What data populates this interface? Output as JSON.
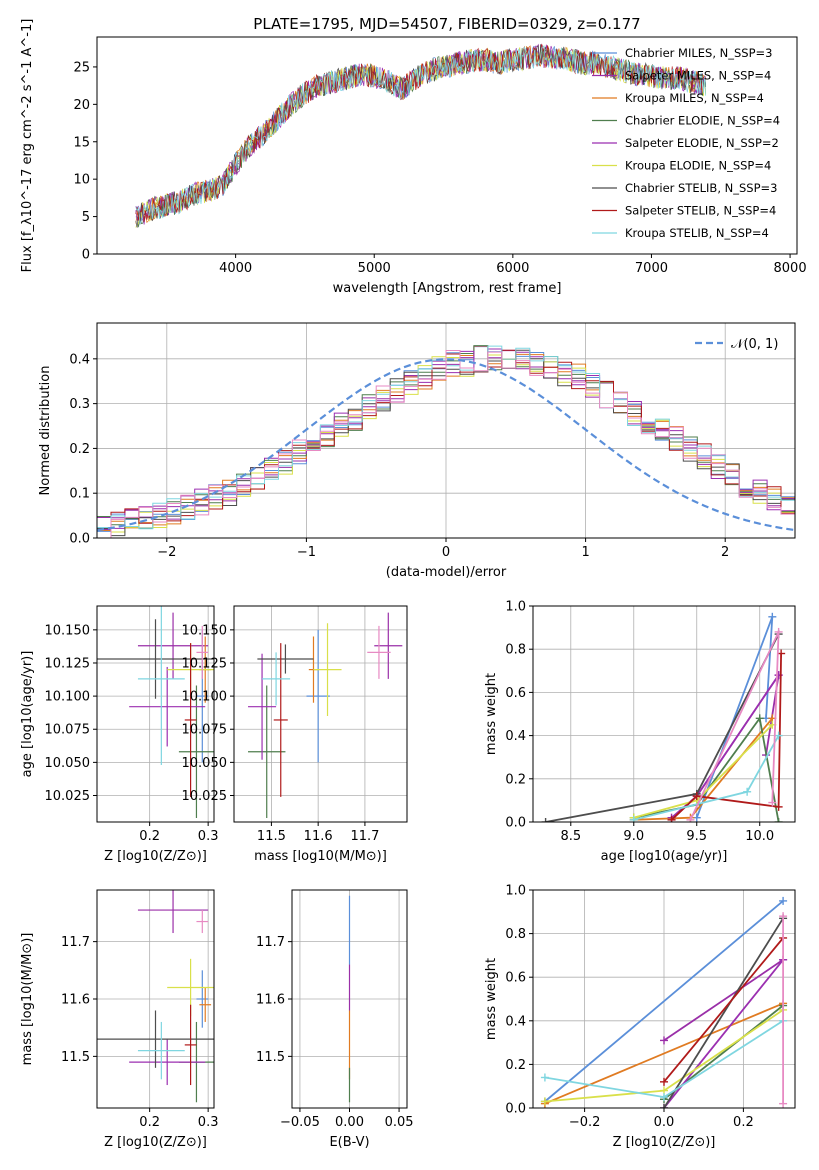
{
  "palette": [
    "#5b8fd9",
    "#9a2fa8",
    "#e07b22",
    "#4f7e4e",
    "#9b2fb0",
    "#d9e04a",
    "#4d4d4d",
    "#b01a1a",
    "#7fd6e0",
    "#e78ac3"
  ],
  "chart_data": [
    {
      "id": "spectrum",
      "type": "line",
      "title": "PLATE=1795, MJD=54507, FIBERID=0329, z=0.177",
      "xlabel": "wavelength [Angstrom, rest frame]",
      "ylabel": "Flux [f_λ10^-17 erg cm^-2 s^-1 A^-1]",
      "xlim": [
        3000,
        8050
      ],
      "ylim": [
        0,
        29
      ],
      "xticks": [
        4000,
        5000,
        6000,
        7000,
        8000
      ],
      "yticks": [
        0,
        5,
        10,
        15,
        20,
        25
      ],
      "grid": false,
      "legend_position": "upper-right",
      "x": [
        3280,
        3400,
        3500,
        3600,
        3700,
        3800,
        3900,
        4000,
        4100,
        4200,
        4300,
        4400,
        4500,
        4600,
        4700,
        4800,
        4900,
        5000,
        5100,
        5200,
        5300,
        5400,
        5500,
        5600,
        5700,
        5800,
        5900,
        6000,
        6100,
        6200,
        6300,
        6400,
        6500,
        6600,
        6700,
        6800,
        6900,
        7000,
        7100,
        7200,
        7300,
        7400
      ],
      "y": [
        5,
        6,
        6.5,
        7,
        8,
        8.5,
        9,
        12,
        14.5,
        16,
        18,
        20,
        21.5,
        22.5,
        23,
        23.5,
        24,
        23.8,
        23,
        22,
        23.5,
        24.5,
        25,
        25.5,
        25.8,
        26,
        25.5,
        26,
        26.2,
        26.5,
        26.3,
        26,
        25.5,
        25.5,
        25,
        24.5,
        24,
        23.8,
        23.5,
        23.5,
        23,
        22.5
      ],
      "legend": [
        "Chabrier MILES, N_SSP=3",
        "Salpeter MILES, N_SSP=4",
        "Kroupa MILES, N_SSP=4",
        "Chabrier ELODIE, N_SSP=4",
        "Salpeter ELODIE, N_SSP=2",
        "Kroupa ELODIE, N_SSP=4",
        "Chabrier STELIB, N_SSP=3",
        "Salpeter STELIB, N_SSP=4",
        "Kroupa STELIB, N_SSP=4"
      ]
    },
    {
      "id": "residuals",
      "type": "line",
      "xlabel": "(data-model)/error",
      "ylabel": "Normed distribution",
      "xlim": [
        -2.5,
        2.5
      ],
      "ylim": [
        0,
        0.48
      ],
      "xticks": [
        -2,
        -1,
        0,
        1,
        2
      ],
      "yticks": [
        0.0,
        0.1,
        0.2,
        0.3,
        0.4
      ],
      "grid": true,
      "legend": [
        "𝒩(0, 1)"
      ],
      "legend_position": "upper-right",
      "bin_width": 0.1,
      "bins_start": -2.5,
      "histogram": [
        0.02,
        0.03,
        0.04,
        0.04,
        0.05,
        0.06,
        0.07,
        0.08,
        0.09,
        0.1,
        0.12,
        0.13,
        0.15,
        0.17,
        0.19,
        0.21,
        0.23,
        0.25,
        0.27,
        0.29,
        0.31,
        0.33,
        0.35,
        0.36,
        0.38,
        0.39,
        0.39,
        0.4,
        0.4,
        0.4,
        0.4,
        0.39,
        0.38,
        0.37,
        0.36,
        0.34,
        0.32,
        0.3,
        0.28,
        0.26,
        0.24,
        0.22,
        0.2,
        0.18,
        0.16,
        0.14,
        0.12,
        0.1,
        0.09,
        0.07
      ]
    },
    {
      "id": "age-vs-z",
      "type": "scatter",
      "xlabel": "Z [log10(Z/Z⊙)]",
      "ylabel": "age  [log10(age/yr)]",
      "xlim": [
        0.11,
        0.31
      ],
      "ylim": [
        10.005,
        10.168
      ],
      "xticks": [
        0.2,
        0.3
      ],
      "yticks": [
        10.025,
        10.05,
        10.075,
        10.1,
        10.125,
        10.15
      ],
      "grid": true,
      "points": [
        {
          "x": 0.29,
          "xerr": 0.01,
          "y": 10.1,
          "yerr": 0.05
        },
        {
          "x": 0.24,
          "xerr": 0.06,
          "y": 10.138,
          "yerr": 0.025
        },
        {
          "x": 0.295,
          "xerr": 0.01,
          "y": 10.12,
          "yerr": 0.025
        },
        {
          "x": 0.28,
          "xerr": 0.03,
          "y": 10.058,
          "yerr": 0.05
        },
        {
          "x": 0.23,
          "xerr": 0.065,
          "y": 10.092,
          "yerr": 0.03
        },
        {
          "x": 0.27,
          "xerr": 0.04,
          "y": 10.12,
          "yerr": 0.02
        },
        {
          "x": 0.21,
          "xerr": 0.1,
          "y": 10.128,
          "yerr": 0.03
        },
        {
          "x": 0.27,
          "xerr": 0.01,
          "y": 10.082,
          "yerr": 0.058
        },
        {
          "x": 0.22,
          "xerr": 0.04,
          "y": 10.113,
          "yerr": 0.065
        },
        {
          "x": 0.29,
          "xerr": 0.01,
          "y": 10.133,
          "yerr": 0.02
        }
      ]
    },
    {
      "id": "age-vs-mass",
      "type": "scatter",
      "xlabel": "mass [log10(M/M⊙)]",
      "ylabel": "",
      "xlim": [
        11.42,
        11.79
      ],
      "ylim": [
        10.005,
        10.168
      ],
      "xticks": [
        11.5,
        11.6,
        11.7
      ],
      "xtick_labels": [
        "11.5",
        "11.6",
        "11.7"
      ],
      "yticks": [
        10.025,
        10.05,
        10.075,
        10.1,
        10.125,
        10.15
      ],
      "grid": true,
      "points": [
        {
          "x": 11.6,
          "xerr": 0.025,
          "y": 10.1,
          "yerr": 0.05
        },
        {
          "x": 11.75,
          "xerr": 0.03,
          "y": 10.138,
          "yerr": 0.025
        },
        {
          "x": 11.59,
          "xerr": 0.01,
          "y": 10.12,
          "yerr": 0.025
        },
        {
          "x": 11.49,
          "xerr": 0.04,
          "y": 10.058,
          "yerr": 0.05
        },
        {
          "x": 11.48,
          "xerr": 0.03,
          "y": 10.092,
          "yerr": 0.04
        },
        {
          "x": 11.62,
          "xerr": 0.03,
          "y": 10.12,
          "yerr": 0.035
        },
        {
          "x": 11.53,
          "xerr": 0.06,
          "y": 10.128,
          "yerr": 0.011
        },
        {
          "x": 11.52,
          "xerr": 0.015,
          "y": 10.082,
          "yerr": 0.058
        },
        {
          "x": 11.51,
          "xerr": 0.03,
          "y": 10.113,
          "yerr": 0.02
        },
        {
          "x": 11.73,
          "xerr": 0.025,
          "y": 10.133,
          "yerr": 0.02
        }
      ]
    },
    {
      "id": "weight-vs-age",
      "type": "line",
      "xlabel": "age  [log10(age/yr)]",
      "ylabel": "mass weight",
      "xlim": [
        8.2,
        10.28
      ],
      "ylim": [
        0,
        1.0
      ],
      "xticks": [
        8.5,
        9.0,
        9.5,
        10.0
      ],
      "yticks": [
        0,
        0.2,
        0.4,
        0.6,
        0.8,
        1.0
      ],
      "grid": true,
      "series": [
        {
          "x": [
            9.5,
            10.1,
            10.05
          ],
          "y": [
            0.02,
            0.95,
            0.48
          ]
        },
        {
          "x": [
            9.3,
            9.5,
            10.15,
            10.05
          ],
          "y": [
            0.01,
            0.12,
            0.68,
            0.31
          ]
        },
        {
          "x": [
            9.0,
            9.45,
            10.1
          ],
          "y": [
            0.01,
            0.02,
            0.48
          ]
        },
        {
          "x": [
            9.0,
            9.5,
            10.0,
            10.15
          ],
          "y": [
            0.02,
            0.08,
            0.48,
            0.0
          ]
        },
        {
          "x": [
            9.3,
            9.5,
            10.15
          ],
          "y": [
            0.02,
            0.12,
            0.68
          ]
        },
        {
          "x": [
            9.0,
            9.5,
            10.1
          ],
          "y": [
            0.02,
            0.1,
            0.45
          ]
        },
        {
          "x": [
            8.3,
            9.5,
            10.15
          ],
          "y": [
            0.0,
            0.13,
            0.87
          ]
        },
        {
          "x": [
            9.3,
            9.5,
            10.15,
            10.17
          ],
          "y": [
            0.01,
            0.12,
            0.07,
            0.78
          ]
        },
        {
          "x": [
            9.0,
            9.9,
            10.15
          ],
          "y": [
            0.01,
            0.14,
            0.4
          ]
        },
        {
          "x": [
            9.45,
            10.15,
            10.1
          ],
          "y": [
            0.01,
            0.88,
            0.09
          ]
        }
      ]
    },
    {
      "id": "mass-vs-z",
      "type": "scatter",
      "xlabel": "Z [log10(Z/Z⊙)]",
      "ylabel": "mass [log10(M/M⊙)]",
      "xlim": [
        0.11,
        0.31
      ],
      "ylim": [
        11.41,
        11.79
      ],
      "xticks": [
        0.2,
        0.3
      ],
      "yticks": [
        11.5,
        11.6,
        11.7
      ],
      "xtick_labels": [
        "0.2",
        "0.3"
      ],
      "ytick_labels": [
        "11.5",
        "11.6",
        "11.7"
      ],
      "grid": true,
      "points": [
        {
          "x": 0.29,
          "xerr": 0.01,
          "y": 11.6,
          "yerr": 0.05
        },
        {
          "x": 0.24,
          "xerr": 0.06,
          "y": 11.755,
          "yerr": 0.04
        },
        {
          "x": 0.295,
          "xerr": 0.01,
          "y": 11.59,
          "yerr": 0.03
        },
        {
          "x": 0.28,
          "xerr": 0.03,
          "y": 11.49,
          "yerr": 0.07
        },
        {
          "x": 0.23,
          "xerr": 0.065,
          "y": 11.49,
          "yerr": 0.04
        },
        {
          "x": 0.27,
          "xerr": 0.04,
          "y": 11.62,
          "yerr": 0.05
        },
        {
          "x": 0.21,
          "xerr": 0.1,
          "y": 11.53,
          "yerr": 0.05
        },
        {
          "x": 0.27,
          "xerr": 0.01,
          "y": 11.52,
          "yerr": 0.07
        },
        {
          "x": 0.22,
          "xerr": 0.04,
          "y": 11.51,
          "yerr": 0.05
        },
        {
          "x": 0.29,
          "xerr": 0.01,
          "y": 11.735,
          "yerr": 0.02
        }
      ]
    },
    {
      "id": "mass-vs-ebv",
      "type": "scatter",
      "xlabel": "E(B-V)",
      "ylabel": "",
      "xlim": [
        -0.058,
        0.058
      ],
      "ylim": [
        11.41,
        11.79
      ],
      "xticks": [
        -0.05,
        0.0,
        0.05
      ],
      "xtick_labels": [
        "−0.05",
        "0.00",
        "0.05"
      ],
      "yticks": [
        11.5,
        11.6,
        11.7
      ],
      "ytick_labels": [
        "11.5",
        "11.6",
        "11.7"
      ],
      "grid": true,
      "points": [
        {
          "x": 0.0,
          "y": 11.72,
          "yerr": 0.06
        },
        {
          "x": 0.0,
          "y": 11.62,
          "yerr": 0.04
        },
        {
          "x": 0.0,
          "y": 11.52,
          "yerr": 0.06
        },
        {
          "x": 0.0,
          "y": 11.45,
          "yerr": 0.03
        }
      ]
    },
    {
      "id": "weight-vs-z",
      "type": "line",
      "xlabel": "Z [log10(Z/Z⊙)]",
      "ylabel": "mass weight",
      "xlim": [
        -0.33,
        0.33
      ],
      "ylim": [
        0,
        1.0
      ],
      "xticks": [
        -0.2,
        0.0,
        0.2
      ],
      "xtick_labels": [
        "−0.2",
        "0.0",
        "0.2"
      ],
      "yticks": [
        0,
        0.2,
        0.4,
        0.6,
        0.8,
        1.0
      ],
      "grid": true,
      "series": [
        {
          "x": [
            -0.3,
            0.3
          ],
          "y": [
            0.03,
            0.95
          ]
        },
        {
          "x": [
            0.0,
            0.3
          ],
          "y": [
            0.31,
            0.68
          ]
        },
        {
          "x": [
            -0.3,
            0.3
          ],
          "y": [
            0.02,
            0.48
          ]
        },
        {
          "x": [
            0.0,
            0.3
          ],
          "y": [
            0.04,
            0.47
          ]
        },
        {
          "x": [
            0.0,
            0.3
          ],
          "y": [
            0.0,
            0.68
          ]
        },
        {
          "x": [
            -0.3,
            0.0,
            0.3
          ],
          "y": [
            0.03,
            0.08,
            0.45
          ]
        },
        {
          "x": [
            0.0,
            0.3
          ],
          "y": [
            0.0,
            0.87
          ]
        },
        {
          "x": [
            0.0,
            0.3
          ],
          "y": [
            0.12,
            0.78
          ]
        },
        {
          "x": [
            -0.3,
            0.0,
            0.3
          ],
          "y": [
            0.14,
            0.05,
            0.4
          ]
        },
        {
          "x": [
            0.3,
            0.3
          ],
          "y": [
            0.02,
            0.88
          ]
        }
      ]
    }
  ]
}
